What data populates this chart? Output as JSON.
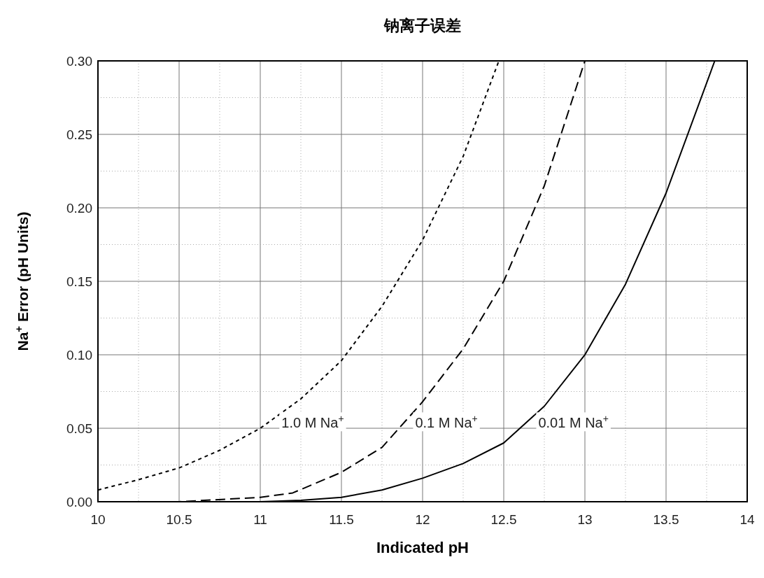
{
  "chart_data": {
    "type": "line",
    "title": "钠离子误差",
    "xlabel": "Indicated pH",
    "ylabel": "Na$^{+}$ Error (pH Units)",
    "xlim": [
      10,
      14
    ],
    "ylim": [
      0,
      0.3
    ],
    "xticks": [
      10,
      10.5,
      11,
      11.5,
      12,
      12.5,
      13,
      13.5,
      14
    ],
    "yticks": [
      {
        "value": 0,
        "label": "0.00"
      },
      {
        "value": 0.05,
        "label": "0.05"
      },
      {
        "value": 0.1,
        "label": "0.10"
      },
      {
        "value": 0.15,
        "label": "0.15"
      },
      {
        "value": 0.2,
        "label": "0.20"
      },
      {
        "value": 0.25,
        "label": "0.25"
      },
      {
        "value": 0.3,
        "label": "0.30"
      }
    ],
    "grid": true,
    "series": [
      {
        "name": "1.0 M Na$^{+}$",
        "color": "#000000",
        "line_style": "dotted",
        "x": [
          10,
          10.25,
          10.5,
          10.75,
          11,
          11.25,
          11.5,
          11.75,
          12,
          12.25,
          12.47
        ],
        "values": [
          0.008,
          0.015,
          0.023,
          0.035,
          0.05,
          0.07,
          0.096,
          0.133,
          0.178,
          0.235,
          0.3
        ]
      },
      {
        "name": "0.1 M Na$^{+}$",
        "color": "#000000",
        "line_style": "dashed",
        "x": [
          10,
          10.5,
          11,
          11.2,
          11.5,
          11.75,
          12,
          12.25,
          12.5,
          12.75,
          13
        ],
        "values": [
          0,
          0,
          0.003,
          0.006,
          0.02,
          0.037,
          0.068,
          0.104,
          0.15,
          0.215,
          0.3
        ]
      },
      {
        "name": "0.01 M Na$^{+}$",
        "color": "#000000",
        "line_style": "solid",
        "x": [
          10,
          11,
          11.25,
          11.5,
          11.75,
          12,
          12.25,
          12.5,
          12.75,
          13,
          13.25,
          13.5,
          13.8
        ],
        "values": [
          0,
          0,
          0.001,
          0.003,
          0.008,
          0.016,
          0.026,
          0.04,
          0.065,
          0.1,
          0.148,
          0.21,
          0.3
        ]
      }
    ]
  }
}
